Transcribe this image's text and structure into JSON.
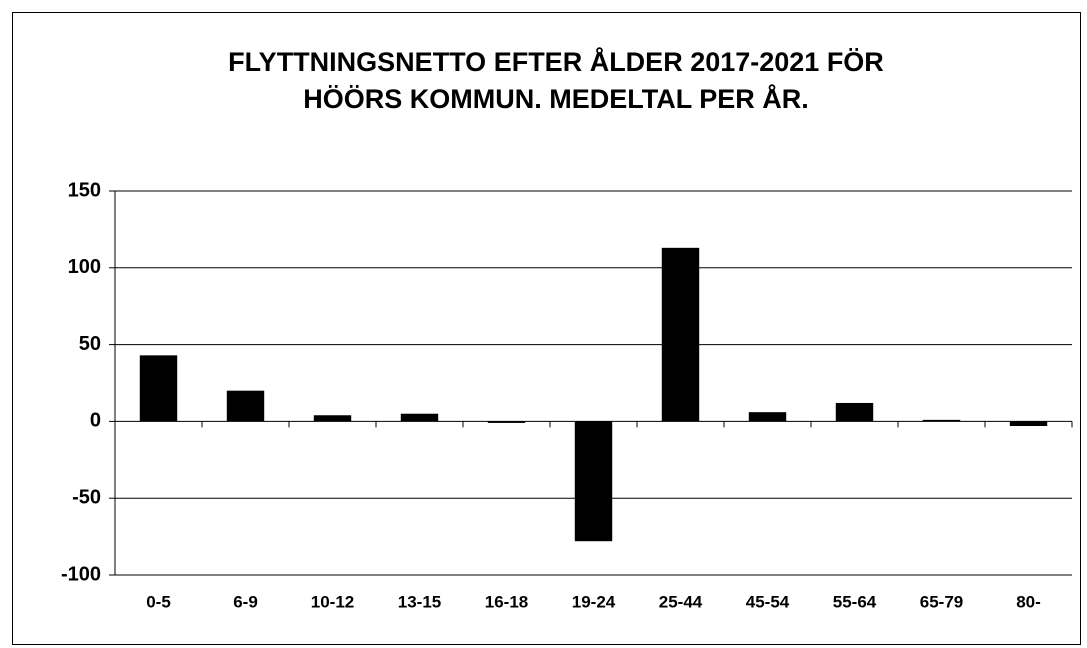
{
  "chart_data": {
    "type": "bar",
    "title": [
      "FLYTTNINGSNETTO EFTER ÅLDER 2017-2021 FÖR",
      "HÖÖRS KOMMUN. MEDELTAL PER ÅR."
    ],
    "categories": [
      "0-5",
      "6-9",
      "10-12",
      "13-15",
      "16-18",
      "19-24",
      "25-44",
      "45-54",
      "55-64",
      "65-79",
      "80-"
    ],
    "values": [
      43,
      20,
      4,
      5,
      -1,
      -78,
      113,
      6,
      12,
      1,
      -3
    ],
    "color": "#000000",
    "ylim": [
      -100,
      150
    ],
    "yticks": [
      -100,
      -50,
      0,
      50,
      100,
      150
    ],
    "grid": true
  }
}
